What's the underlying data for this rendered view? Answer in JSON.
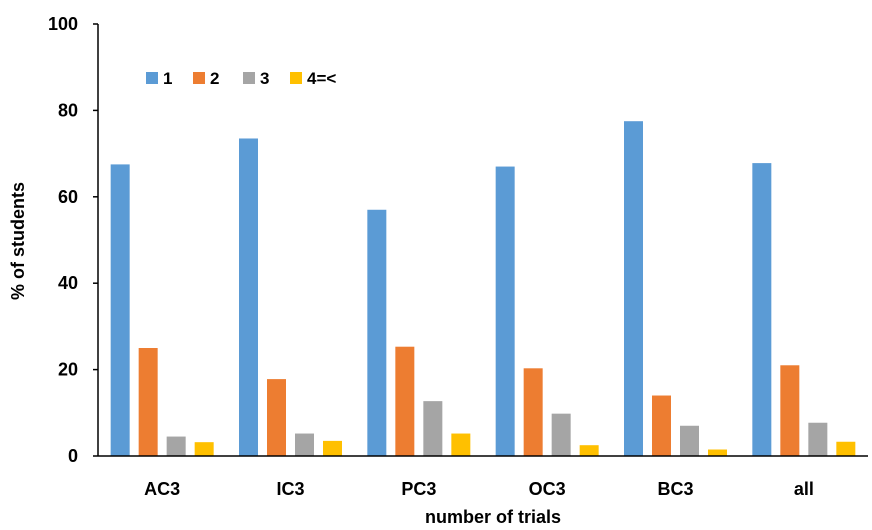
{
  "chart_data": {
    "type": "bar",
    "title": "",
    "xlabel": "number of trials",
    "ylabel": "% of students",
    "ylim": [
      0,
      100
    ],
    "yticks": [
      "0",
      "20",
      "40",
      "60",
      "80",
      "100"
    ],
    "grid": false,
    "legend_position": "top-left",
    "categories": [
      "AC3",
      "IC3",
      "PC3",
      "OC3",
      "BC3",
      "all"
    ],
    "series": [
      {
        "name": "1",
        "color": "#5b9bd5",
        "values": [
          67.5,
          73.5,
          57.0,
          67.0,
          77.5,
          67.8
        ]
      },
      {
        "name": "2",
        "color": "#ed7d31",
        "values": [
          25.0,
          17.8,
          25.3,
          20.3,
          14.0,
          21.0
        ]
      },
      {
        "name": "3",
        "color": "#a5a5a5",
        "values": [
          4.5,
          5.2,
          12.7,
          9.8,
          7.0,
          7.7
        ]
      },
      {
        "name": "4=<",
        "color": "#ffc000",
        "values": [
          3.2,
          3.5,
          5.2,
          2.5,
          1.5,
          3.3
        ]
      }
    ]
  }
}
